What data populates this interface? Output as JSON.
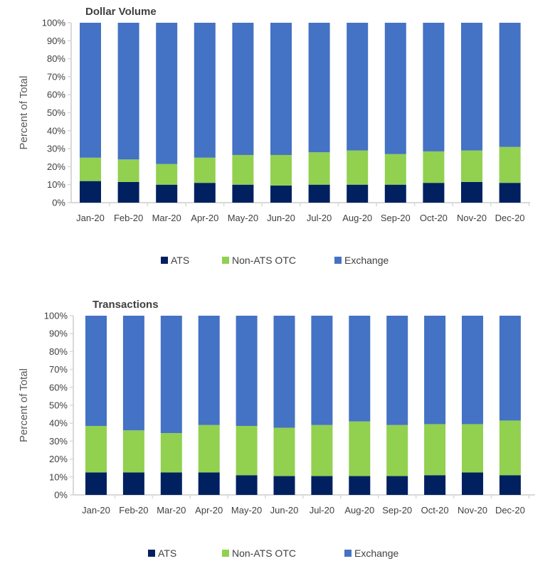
{
  "chart_data": [
    {
      "type": "bar",
      "stacked": true,
      "title": "Dollar Volume",
      "xlabel": "",
      "ylabel": "Percent of Total",
      "ylim": [
        0,
        100
      ],
      "yticks": [
        "0%",
        "10%",
        "20%",
        "30%",
        "40%",
        "50%",
        "60%",
        "70%",
        "80%",
        "90%",
        "100%"
      ],
      "categories": [
        "Jan-20",
        "Feb-20",
        "Mar-20",
        "Apr-20",
        "May-20",
        "Jun-20",
        "Jul-20",
        "Aug-20",
        "Sep-20",
        "Oct-20",
        "Nov-20",
        "Dec-20"
      ],
      "legend_position": "bottom",
      "series": [
        {
          "name": "ATS",
          "color": "#002060",
          "values": [
            12,
            11.5,
            10,
            11,
            10,
            9.5,
            10,
            10,
            10,
            11,
            11.5,
            11
          ]
        },
        {
          "name": "Non-ATS OTC",
          "color": "#92D050",
          "values": [
            13,
            12.5,
            11.5,
            14,
            16.5,
            17,
            18,
            19,
            17,
            17.5,
            17.5,
            20
          ]
        },
        {
          "name": "Exchange",
          "color": "#4472C4",
          "values": [
            75,
            76,
            78.5,
            75,
            73.5,
            73.5,
            72,
            71,
            73,
            71.5,
            71,
            69
          ]
        }
      ]
    },
    {
      "type": "bar",
      "stacked": true,
      "title": "Transactions",
      "xlabel": "",
      "ylabel": "Percent of Total",
      "ylim": [
        0,
        100
      ],
      "yticks": [
        "0%",
        "10%",
        "20%",
        "30%",
        "40%",
        "50%",
        "60%",
        "70%",
        "80%",
        "90%",
        "100%"
      ],
      "categories": [
        "Jan-20",
        "Feb-20",
        "Mar-20",
        "Apr-20",
        "May-20",
        "Jun-20",
        "Jul-20",
        "Aug-20",
        "Sep-20",
        "Oct-20",
        "Nov-20",
        "Dec-20"
      ],
      "legend_position": "bottom",
      "series": [
        {
          "name": "ATS",
          "color": "#002060",
          "values": [
            12.5,
            12.5,
            12.5,
            12.5,
            11,
            10.5,
            10.5,
            10.5,
            10.5,
            11,
            12.5,
            11
          ]
        },
        {
          "name": "Non-ATS OTC",
          "color": "#92D050",
          "values": [
            26,
            23.5,
            22,
            26.5,
            27.5,
            27,
            28.5,
            30.5,
            28.5,
            28.5,
            27,
            30.5
          ]
        },
        {
          "name": "Exchange",
          "color": "#4472C4",
          "values": [
            61.5,
            64,
            65.5,
            61,
            61.5,
            62.5,
            61,
            59,
            61,
            60.5,
            60.5,
            58.5
          ]
        }
      ]
    }
  ]
}
